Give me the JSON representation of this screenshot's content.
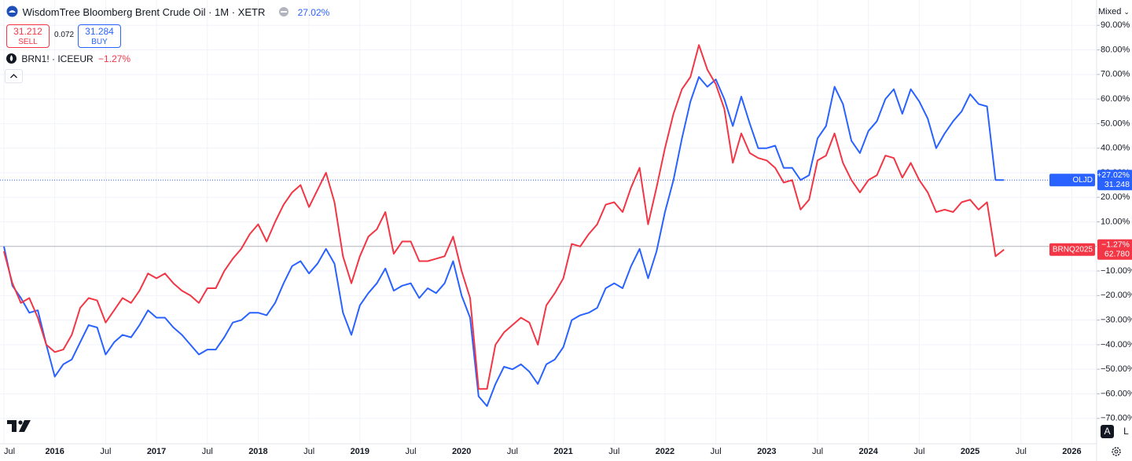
{
  "header": {
    "title": "WisdomTree Bloomberg Brent Crude Oil · 1M · XETR",
    "change": "27.02%",
    "sell_price": "31.212",
    "sell_label": "SELL",
    "spread": "0.072",
    "buy_price": "31.284",
    "buy_label": "BUY",
    "compare_symbol": "BRN1! · ICEEUR",
    "compare_change": "−1.27%",
    "scale_mode": "Mixed",
    "auto_button": "A",
    "log_button": "L"
  },
  "chart_data": {
    "type": "line",
    "x": [
      "2015-07",
      "2015-08",
      "2015-09",
      "2015-10",
      "2015-11",
      "2015-12",
      "2016-01",
      "2016-02",
      "2016-03",
      "2016-04",
      "2016-05",
      "2016-06",
      "2016-07",
      "2016-08",
      "2016-09",
      "2016-10",
      "2016-11",
      "2016-12",
      "2017-01",
      "2017-02",
      "2017-03",
      "2017-04",
      "2017-05",
      "2017-06",
      "2017-07",
      "2017-08",
      "2017-09",
      "2017-10",
      "2017-11",
      "2017-12",
      "2018-01",
      "2018-02",
      "2018-03",
      "2018-04",
      "2018-05",
      "2018-06",
      "2018-07",
      "2018-08",
      "2018-09",
      "2018-10",
      "2018-11",
      "2018-12",
      "2019-01",
      "2019-02",
      "2019-03",
      "2019-04",
      "2019-05",
      "2019-06",
      "2019-07",
      "2019-08",
      "2019-09",
      "2019-10",
      "2019-11",
      "2019-12",
      "2020-01",
      "2020-02",
      "2020-03",
      "2020-04",
      "2020-05",
      "2020-06",
      "2020-07",
      "2020-08",
      "2020-09",
      "2020-10",
      "2020-11",
      "2020-12",
      "2021-01",
      "2021-02",
      "2021-03",
      "2021-04",
      "2021-05",
      "2021-06",
      "2021-07",
      "2021-08",
      "2021-09",
      "2021-10",
      "2021-11",
      "2021-12",
      "2022-01",
      "2022-02",
      "2022-03",
      "2022-04",
      "2022-05",
      "2022-06",
      "2022-07",
      "2022-08",
      "2022-09",
      "2022-10",
      "2022-11",
      "2022-12",
      "2023-01",
      "2023-02",
      "2023-03",
      "2023-04",
      "2023-05",
      "2023-06",
      "2023-07",
      "2023-08",
      "2023-09",
      "2023-10",
      "2023-11",
      "2023-12",
      "2024-01",
      "2024-02",
      "2024-03",
      "2024-04",
      "2024-05",
      "2024-06",
      "2024-07",
      "2024-08",
      "2024-09",
      "2024-10",
      "2024-11",
      "2024-12",
      "2025-01",
      "2025-02",
      "2025-03",
      "2025-04",
      "2025-05"
    ],
    "series": [
      {
        "name": "OLJD",
        "color": "#2962ff",
        "change_label": "+27.02%",
        "price_label": "31.248",
        "price_line": "dotted",
        "values": [
          0,
          -16,
          -21,
          -27,
          -26,
          -40,
          -53,
          -48,
          -46,
          -39,
          -32,
          -33,
          -44,
          -39,
          -36,
          -37,
          -32,
          -26,
          -29,
          -29,
          -33,
          -36,
          -40,
          -44,
          -42,
          -42,
          -37,
          -31,
          -30,
          -27,
          -27,
          -28,
          -23,
          -15,
          -8,
          -6,
          -11,
          -7,
          -1,
          -7,
          -27,
          -36,
          -24,
          -19,
          -15,
          -9,
          -18,
          -16,
          -15,
          -21,
          -17,
          -19,
          -15,
          -6,
          -20,
          -29,
          -61,
          -65,
          -56,
          -49,
          -50,
          -48,
          -51,
          -56,
          -48,
          -46,
          -41,
          -30,
          -28,
          -27,
          -25,
          -17,
          -15,
          -17,
          -8,
          -1,
          -13,
          -2,
          14,
          27,
          44,
          59,
          69,
          65,
          68,
          60,
          49,
          61,
          50,
          40,
          40,
          41,
          32,
          32,
          27,
          29,
          44,
          49,
          65,
          58,
          43,
          38,
          47,
          51,
          60,
          64,
          54,
          64,
          59,
          52,
          40,
          46,
          51,
          55,
          62,
          58,
          57,
          27,
          27.02
        ]
      },
      {
        "name": "BRNQ2025",
        "color": "#f23645",
        "change_label": "−1.27%",
        "price_label": "62.780",
        "values": [
          -2,
          -15,
          -23,
          -21,
          -29,
          -40,
          -43,
          -42,
          -36,
          -25,
          -21,
          -22,
          -31,
          -26,
          -21,
          -23,
          -18,
          -11,
          -13,
          -11,
          -15,
          -18,
          -20,
          -23,
          -17,
          -17,
          -10,
          -5,
          -1,
          5,
          9,
          2,
          10,
          17,
          22,
          25,
          16,
          23,
          30,
          18,
          -4,
          -15,
          -4,
          4,
          7,
          14,
          -3,
          2,
          2,
          -6,
          -6,
          -5,
          -4,
          4,
          -10,
          -21,
          -58,
          -58,
          -40,
          -35,
          -32,
          -29,
          -31,
          -40,
          -24,
          -19,
          -13,
          1,
          0,
          5,
          9,
          17,
          18,
          14,
          24,
          32,
          9,
          24,
          40,
          54,
          64,
          69,
          82,
          72,
          66,
          56,
          34,
          46,
          38,
          36,
          35,
          32,
          26,
          27,
          15,
          19,
          35,
          37,
          46,
          34,
          27,
          22,
          27,
          29,
          37,
          36,
          28,
          34,
          27,
          22,
          14,
          15,
          14,
          18,
          19,
          15,
          18,
          -4,
          -1.27
        ]
      }
    ],
    "xlim": [
      "2015-07",
      "2026-03"
    ],
    "xticks": [
      {
        "value": "2015-07",
        "label": "Jul"
      },
      {
        "value": "2016-01",
        "label": "2016"
      },
      {
        "value": "2016-07",
        "label": "Jul"
      },
      {
        "value": "2017-01",
        "label": "2017"
      },
      {
        "value": "2017-07",
        "label": "Jul"
      },
      {
        "value": "2018-01",
        "label": "2018"
      },
      {
        "value": "2018-07",
        "label": "Jul"
      },
      {
        "value": "2019-01",
        "label": "2019"
      },
      {
        "value": "2019-07",
        "label": "Jul"
      },
      {
        "value": "2020-01",
        "label": "2020"
      },
      {
        "value": "2020-07",
        "label": "Jul"
      },
      {
        "value": "2021-01",
        "label": "2021"
      },
      {
        "value": "2021-07",
        "label": "Jul"
      },
      {
        "value": "2022-01",
        "label": "2022"
      },
      {
        "value": "2022-07",
        "label": "Jul"
      },
      {
        "value": "2023-01",
        "label": "2023"
      },
      {
        "value": "2023-07",
        "label": "Jul"
      },
      {
        "value": "2024-01",
        "label": "2024"
      },
      {
        "value": "2024-07",
        "label": "Jul"
      },
      {
        "value": "2025-01",
        "label": "2025"
      },
      {
        "value": "2025-07",
        "label": "Jul"
      },
      {
        "value": "2026-01",
        "label": "2026"
      }
    ],
    "ylim": [
      -80,
      100
    ],
    "yticks": [
      {
        "value": 90,
        "label": "90.00%"
      },
      {
        "value": 80,
        "label": "80.00%"
      },
      {
        "value": 70,
        "label": "70.00%"
      },
      {
        "value": 60,
        "label": "60.00%"
      },
      {
        "value": 50,
        "label": "50.00%"
      },
      {
        "value": 40,
        "label": "40.00%"
      },
      {
        "value": 30,
        "label": "30.00%"
      },
      {
        "value": 20,
        "label": "20.00%"
      },
      {
        "value": 10,
        "label": "10.00%"
      },
      {
        "value": -10,
        "label": "−10.00%"
      },
      {
        "value": -20,
        "label": "−20.00%"
      },
      {
        "value": -30,
        "label": "−30.00%"
      },
      {
        "value": -40,
        "label": "−40.00%"
      },
      {
        "value": -50,
        "label": "−50.00%"
      },
      {
        "value": -60,
        "label": "−60.00%"
      },
      {
        "value": -70,
        "label": "−70.00%"
      }
    ],
    "baseline": 0,
    "grid": true
  }
}
